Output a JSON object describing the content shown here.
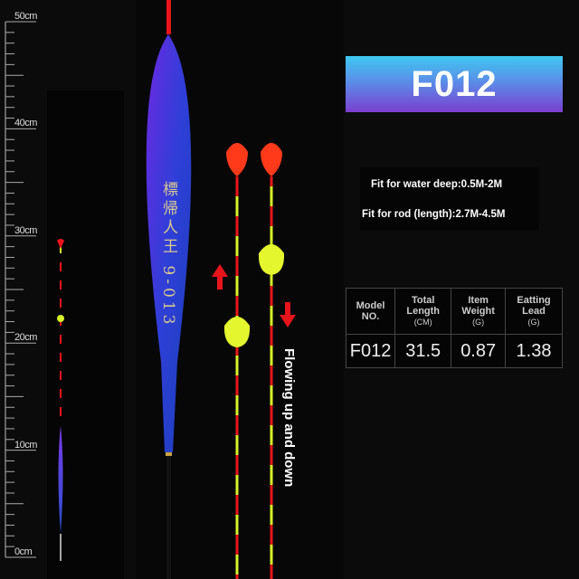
{
  "ruler": {
    "labels": [
      "50cm",
      "40cm",
      "30cm",
      "20cm",
      "10cm",
      "0cm"
    ]
  },
  "product_lettering": "標帰人王 9-013",
  "header": {
    "model": "F012",
    "gradient": [
      "#3fc8f0",
      "#7a3fd0"
    ]
  },
  "specs": {
    "water_depth": "Fit for water deep:0.5M-2M",
    "rod_length": "Fit for rod (length):2.7M-4.5M"
  },
  "table": {
    "headers": [
      {
        "title": "Model NO.",
        "unit": ""
      },
      {
        "title": "Total Length",
        "unit": "(CM)"
      },
      {
        "title": "Item Weight",
        "unit": "(G)"
      },
      {
        "title": "Eatting Lead",
        "unit": "(G)"
      }
    ],
    "row": [
      "F012",
      "31.5",
      "0.87",
      "1.38"
    ]
  },
  "annotation": {
    "flow_text": "Flowing up and down",
    "arrow_color": "#e8141c"
  },
  "colors": {
    "antenna_red": "#e8141c",
    "antenna_yellow": "#d6f22a",
    "body_blue": "#3a2fd8"
  }
}
